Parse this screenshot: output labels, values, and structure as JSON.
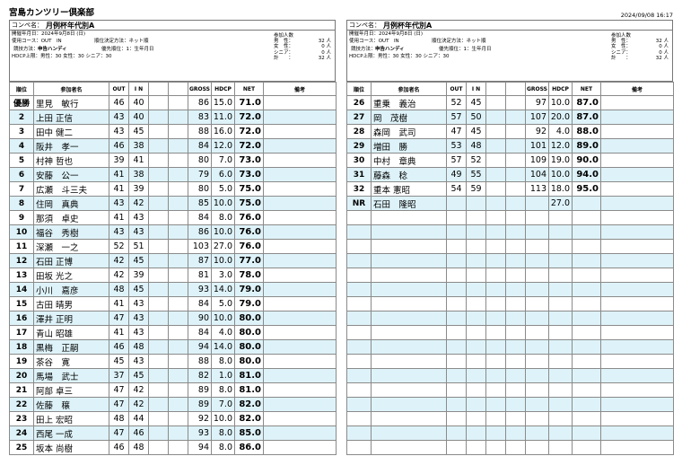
{
  "header": {
    "club_name": "宮島カンツリー倶楽部",
    "print_datetime": "2024/09/08 16:17"
  },
  "competition": {
    "label": "コンペ名：",
    "name": "月例杯年代別A",
    "held_date": "開催年月日：2024年9月8日 (日)",
    "course": "使用コース：OUT　IN",
    "ranking_method": "順位決定方法：ネット順",
    "play_method_label": "競技方法：",
    "play_method": "申告ハンディ",
    "priority": "優先順位：1：生年月日",
    "hdcp_limit": "HDCP上限：男性：30 女性：30 シニア：30"
  },
  "counts": {
    "title": "参加人数",
    "rows": [
      {
        "label": "男　性：",
        "value": "32 人"
      },
      {
        "label": "女　性：",
        "value": "0 人"
      },
      {
        "label": "シニア：",
        "value": "0 人"
      },
      {
        "label": "計　　：",
        "value": "32 人"
      }
    ]
  },
  "columns": [
    "順位",
    "参加者名",
    "OUT",
    "I N",
    "",
    "",
    "GROSS",
    "HDCP",
    "NET",
    "備考"
  ],
  "left_rows": [
    {
      "rank": "優勝",
      "name": "里見　敏行",
      "out": "46",
      "in": "40",
      "gross": "86",
      "hdcp": "15.0",
      "net": "71.0"
    },
    {
      "rank": "2",
      "name": "上田 正信",
      "out": "43",
      "in": "40",
      "gross": "83",
      "hdcp": "11.0",
      "net": "72.0"
    },
    {
      "rank": "3",
      "name": "田中 健二",
      "out": "43",
      "in": "45",
      "gross": "88",
      "hdcp": "16.0",
      "net": "72.0"
    },
    {
      "rank": "4",
      "name": "阪井　孝一",
      "out": "46",
      "in": "38",
      "gross": "84",
      "hdcp": "12.0",
      "net": "72.0"
    },
    {
      "rank": "5",
      "name": "村神 哲也",
      "out": "39",
      "in": "41",
      "gross": "80",
      "hdcp": "7.0",
      "net": "73.0"
    },
    {
      "rank": "6",
      "name": "安藤　公一",
      "out": "41",
      "in": "38",
      "gross": "79",
      "hdcp": "6.0",
      "net": "73.0"
    },
    {
      "rank": "7",
      "name": "広瀬　斗三夫",
      "out": "41",
      "in": "39",
      "gross": "80",
      "hdcp": "5.0",
      "net": "75.0"
    },
    {
      "rank": "8",
      "name": "住岡　真典",
      "out": "43",
      "in": "42",
      "gross": "85",
      "hdcp": "10.0",
      "net": "75.0"
    },
    {
      "rank": "9",
      "name": "那須　卓史",
      "out": "41",
      "in": "43",
      "gross": "84",
      "hdcp": "8.0",
      "net": "76.0"
    },
    {
      "rank": "10",
      "name": "福谷　秀樹",
      "out": "43",
      "in": "43",
      "gross": "86",
      "hdcp": "10.0",
      "net": "76.0"
    },
    {
      "rank": "11",
      "name": "深瀬　一之",
      "out": "52",
      "in": "51",
      "gross": "103",
      "hdcp": "27.0",
      "net": "76.0"
    },
    {
      "rank": "12",
      "name": "石田 正博",
      "out": "42",
      "in": "45",
      "gross": "87",
      "hdcp": "10.0",
      "net": "77.0"
    },
    {
      "rank": "13",
      "name": "田坂 光之",
      "out": "42",
      "in": "39",
      "gross": "81",
      "hdcp": "3.0",
      "net": "78.0"
    },
    {
      "rank": "14",
      "name": "小川　嘉彦",
      "out": "48",
      "in": "45",
      "gross": "93",
      "hdcp": "14.0",
      "net": "79.0"
    },
    {
      "rank": "15",
      "name": "古田 晴男",
      "out": "41",
      "in": "43",
      "gross": "84",
      "hdcp": "5.0",
      "net": "79.0"
    },
    {
      "rank": "16",
      "name": "澤井 正明",
      "out": "47",
      "in": "43",
      "gross": "90",
      "hdcp": "10.0",
      "net": "80.0"
    },
    {
      "rank": "17",
      "name": "青山 昭雄",
      "out": "41",
      "in": "43",
      "gross": "84",
      "hdcp": "4.0",
      "net": "80.0"
    },
    {
      "rank": "18",
      "name": "黒梅　正嗣",
      "out": "46",
      "in": "48",
      "gross": "94",
      "hdcp": "14.0",
      "net": "80.0"
    },
    {
      "rank": "19",
      "name": "茶谷　寛",
      "out": "45",
      "in": "43",
      "gross": "88",
      "hdcp": "8.0",
      "net": "80.0"
    },
    {
      "rank": "20",
      "name": "馬場　武士",
      "out": "37",
      "in": "45",
      "gross": "82",
      "hdcp": "1.0",
      "net": "81.0"
    },
    {
      "rank": "21",
      "name": "阿部 卓三",
      "out": "47",
      "in": "42",
      "gross": "89",
      "hdcp": "8.0",
      "net": "81.0"
    },
    {
      "rank": "22",
      "name": "佐藤　穣",
      "out": "47",
      "in": "42",
      "gross": "89",
      "hdcp": "7.0",
      "net": "82.0"
    },
    {
      "rank": "23",
      "name": "田上 宏昭",
      "out": "48",
      "in": "44",
      "gross": "92",
      "hdcp": "10.0",
      "net": "82.0"
    },
    {
      "rank": "24",
      "name": "西尾 一成",
      "out": "47",
      "in": "46",
      "gross": "93",
      "hdcp": "8.0",
      "net": "85.0"
    },
    {
      "rank": "25",
      "name": "坂本 尚樹",
      "out": "46",
      "in": "48",
      "gross": "94",
      "hdcp": "8.0",
      "net": "86.0"
    }
  ],
  "right_rows": [
    {
      "rank": "26",
      "name": "重乗　義治",
      "out": "52",
      "in": "45",
      "gross": "97",
      "hdcp": "10.0",
      "net": "87.0"
    },
    {
      "rank": "27",
      "name": "岡　茂樹",
      "out": "57",
      "in": "50",
      "gross": "107",
      "hdcp": "20.0",
      "net": "87.0"
    },
    {
      "rank": "28",
      "name": "森岡　武司",
      "out": "47",
      "in": "45",
      "gross": "92",
      "hdcp": "4.0",
      "net": "88.0"
    },
    {
      "rank": "29",
      "name": "増田　勝",
      "out": "53",
      "in": "48",
      "gross": "101",
      "hdcp": "12.0",
      "net": "89.0"
    },
    {
      "rank": "30",
      "name": "中村　章典",
      "out": "57",
      "in": "52",
      "gross": "109",
      "hdcp": "19.0",
      "net": "90.0"
    },
    {
      "rank": "31",
      "name": "藤森　稔",
      "out": "49",
      "in": "55",
      "gross": "104",
      "hdcp": "10.0",
      "net": "94.0"
    },
    {
      "rank": "32",
      "name": "重本 憲昭",
      "out": "54",
      "in": "59",
      "gross": "113",
      "hdcp": "18.0",
      "net": "95.0"
    },
    {
      "rank": "NR",
      "name": "石田　隆昭",
      "out": "",
      "in": "",
      "gross": "",
      "hdcp": "27.0",
      "net": ""
    },
    {
      "rank": "",
      "name": "",
      "out": "",
      "in": "",
      "gross": "",
      "hdcp": "",
      "net": ""
    },
    {
      "rank": "",
      "name": "",
      "out": "",
      "in": "",
      "gross": "",
      "hdcp": "",
      "net": ""
    },
    {
      "rank": "",
      "name": "",
      "out": "",
      "in": "",
      "gross": "",
      "hdcp": "",
      "net": ""
    },
    {
      "rank": "",
      "name": "",
      "out": "",
      "in": "",
      "gross": "",
      "hdcp": "",
      "net": ""
    },
    {
      "rank": "",
      "name": "",
      "out": "",
      "in": "",
      "gross": "",
      "hdcp": "",
      "net": ""
    },
    {
      "rank": "",
      "name": "",
      "out": "",
      "in": "",
      "gross": "",
      "hdcp": "",
      "net": ""
    },
    {
      "rank": "",
      "name": "",
      "out": "",
      "in": "",
      "gross": "",
      "hdcp": "",
      "net": ""
    },
    {
      "rank": "",
      "name": "",
      "out": "",
      "in": "",
      "gross": "",
      "hdcp": "",
      "net": ""
    },
    {
      "rank": "",
      "name": "",
      "out": "",
      "in": "",
      "gross": "",
      "hdcp": "",
      "net": ""
    },
    {
      "rank": "",
      "name": "",
      "out": "",
      "in": "",
      "gross": "",
      "hdcp": "",
      "net": ""
    },
    {
      "rank": "",
      "name": "",
      "out": "",
      "in": "",
      "gross": "",
      "hdcp": "",
      "net": ""
    },
    {
      "rank": "",
      "name": "",
      "out": "",
      "in": "",
      "gross": "",
      "hdcp": "",
      "net": ""
    },
    {
      "rank": "",
      "name": "",
      "out": "",
      "in": "",
      "gross": "",
      "hdcp": "",
      "net": ""
    },
    {
      "rank": "",
      "name": "",
      "out": "",
      "in": "",
      "gross": "",
      "hdcp": "",
      "net": ""
    },
    {
      "rank": "",
      "name": "",
      "out": "",
      "in": "",
      "gross": "",
      "hdcp": "",
      "net": ""
    },
    {
      "rank": "",
      "name": "",
      "out": "",
      "in": "",
      "gross": "",
      "hdcp": "",
      "net": ""
    },
    {
      "rank": "",
      "name": "",
      "out": "",
      "in": "",
      "gross": "",
      "hdcp": "",
      "net": ""
    }
  ]
}
